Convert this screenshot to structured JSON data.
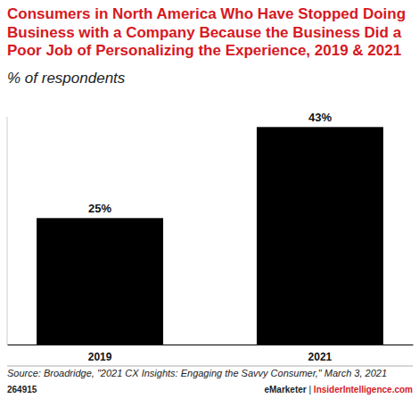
{
  "chart_data": {
    "type": "bar",
    "title": "Consumers in North America Who Have Stopped Doing Business with a Company Because the Business Did a Poor Job of Personalizing the Experience, 2019 & 2021",
    "subtitle": "% of respondents",
    "categories": [
      "2019",
      "2021"
    ],
    "values": [
      25,
      43
    ],
    "value_labels": [
      "25%",
      "43%"
    ],
    "color": "#000000",
    "ylim": [
      0,
      45
    ],
    "data_labels": true,
    "tick_labels": "x",
    "grid": false,
    "source": "Source: Broadridge, \"2021 CX Insights: Engaging the Savvy Consumer,\" March 3, 2021",
    "chart_id": "264915",
    "footer": [
      "eMarketer",
      "|",
      "InsiderIntelligence.com"
    ]
  }
}
